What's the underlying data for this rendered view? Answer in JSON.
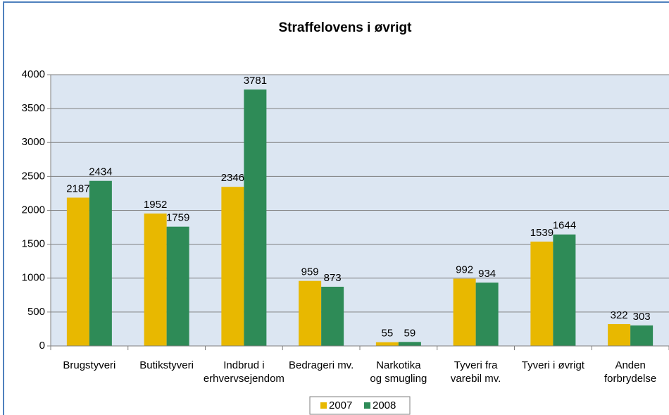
{
  "chart_data": {
    "type": "bar",
    "title": "Straffelovens i øvrigt",
    "categories": [
      "Brugstyveri",
      "Butikstyveri",
      "Indbrud i\nerhvervsejendom",
      "Bedrageri mv.",
      "Narkotika\nog smugling",
      "Tyveri fra\nvarebil mv.",
      "Tyveri i øvrigt",
      "Anden\nforbrydelse"
    ],
    "series": [
      {
        "name": "2007",
        "color": "#e8b800",
        "values": [
          2187,
          1952,
          2346,
          959,
          55,
          992,
          1539,
          322
        ]
      },
      {
        "name": "2008",
        "color": "#2e8b57",
        "values": [
          2434,
          1759,
          3781,
          873,
          59,
          934,
          1644,
          303
        ]
      }
    ],
    "ylim": [
      0,
      4000
    ],
    "yticks": [
      0,
      500,
      1000,
      1500,
      2000,
      2500,
      3000,
      3500,
      4000
    ],
    "grid": true
  }
}
